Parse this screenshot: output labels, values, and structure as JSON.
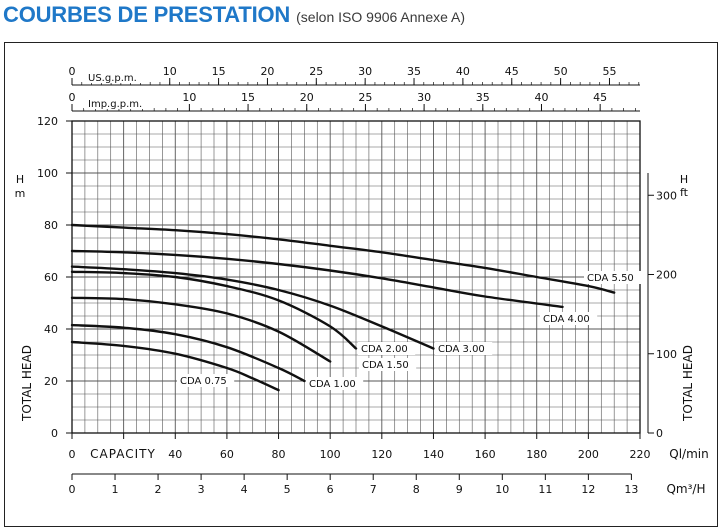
{
  "header": {
    "title": "COURBES DE PRESTATION",
    "subtitle": "(selon ISO 9906 Annexe A)"
  },
  "chart_data": {
    "type": "line",
    "x_unit": "Ql/min",
    "x_ticks": [
      0,
      20,
      40,
      60,
      80,
      100,
      120,
      140,
      160,
      180,
      200,
      220
    ],
    "xlim": [
      0,
      220
    ],
    "y_label": "TOTAL HEAD",
    "y_unit": "H m",
    "y_ticks": [
      0,
      20,
      40,
      60,
      80,
      100,
      120
    ],
    "ylim": [
      0,
      120
    ],
    "capacity_label": "CAPACITY",
    "secondary_y": {
      "label": "TOTAL HEAD",
      "unit": "H ft",
      "ticks": [
        0,
        100,
        200,
        300
      ],
      "ticks_in_m": [
        0,
        30.48,
        60.96,
        91.44
      ]
    },
    "axes_top": [
      {
        "unit": "US.g.p.m.",
        "ticks": [
          0,
          10,
          15,
          20,
          25,
          30,
          35,
          40,
          45,
          50,
          55
        ],
        "qlmin_per_unit": 3.785
      },
      {
        "unit": "Imp.g.p.m.",
        "ticks": [
          0,
          10,
          15,
          20,
          25,
          30,
          35,
          40,
          45
        ],
        "qlmin_per_unit": 4.546
      }
    ],
    "axes_bottom": [
      {
        "unit": "Qm³/H",
        "ticks": [
          0,
          1,
          2,
          3,
          4,
          5,
          6,
          7,
          8,
          9,
          10,
          11,
          12,
          13
        ],
        "qlmin_per_unit": 16.667
      }
    ],
    "series": [
      {
        "name": "CDA 0.75",
        "x": [
          0,
          20,
          40,
          60,
          70,
          80
        ],
        "y": [
          35,
          33.5,
          30.5,
          25,
          21,
          16.5
        ]
      },
      {
        "name": "CDA 1.00",
        "x": [
          0,
          20,
          40,
          60,
          80,
          90
        ],
        "y": [
          41.5,
          40.5,
          38,
          33,
          25,
          20
        ]
      },
      {
        "name": "CDA 1.50",
        "x": [
          0,
          20,
          40,
          60,
          80,
          100
        ],
        "y": [
          52,
          51.5,
          49.5,
          46,
          39,
          27.5
        ]
      },
      {
        "name": "CDA 2.00",
        "x": [
          0,
          20,
          40,
          60,
          80,
          100,
          110
        ],
        "y": [
          62,
          61.5,
          60,
          56.5,
          51,
          41,
          32.5
        ]
      },
      {
        "name": "CDA 3.00",
        "x": [
          0,
          20,
          40,
          60,
          80,
          100,
          120,
          140
        ],
        "y": [
          64,
          63,
          61.5,
          59,
          55,
          49,
          41,
          32.5
        ]
      },
      {
        "name": "CDA 4.00",
        "x": [
          0,
          20,
          40,
          60,
          80,
          100,
          120,
          140,
          160,
          190
        ],
        "y": [
          70,
          69.5,
          68.5,
          67,
          65,
          62.5,
          59.5,
          56,
          52.5,
          48.5
        ]
      },
      {
        "name": "CDA 5.50",
        "x": [
          0,
          20,
          40,
          60,
          80,
          100,
          120,
          140,
          160,
          180,
          200,
          210
        ],
        "y": [
          80,
          79,
          78,
          76.5,
          74.5,
          72,
          69.5,
          66.5,
          63.5,
          60,
          56.5,
          54
        ]
      }
    ],
    "grid": true,
    "legend": "inline-labels"
  }
}
